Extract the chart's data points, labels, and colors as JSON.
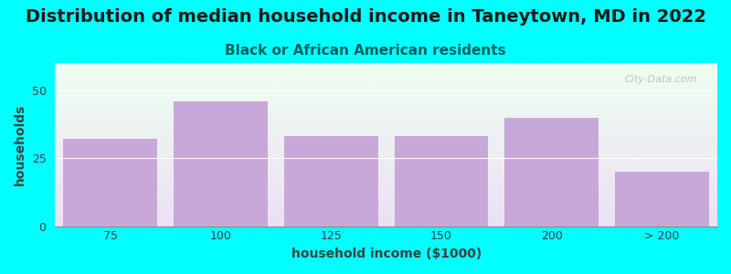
{
  "title": "Distribution of median household income in Taneytown, MD in 2022",
  "subtitle": "Black or African American residents",
  "categories": [
    "75",
    "100",
    "125",
    "150",
    "200",
    "> 200"
  ],
  "values": [
    32,
    46,
    33,
    33,
    40,
    20
  ],
  "bar_color": "#c8a8d8",
  "background_outer": "#00ffff",
  "background_inner_top": "#edfff0",
  "background_inner_bottom": "#ede0f5",
  "xlabel": "household income ($1000)",
  "ylabel": "households",
  "ylim": [
    0,
    60
  ],
  "yticks": [
    0,
    25,
    50
  ],
  "title_fontsize": 14,
  "subtitle_fontsize": 11,
  "axis_label_fontsize": 10,
  "tick_fontsize": 9,
  "title_color": "#1a1a1a",
  "subtitle_color": "#006060",
  "label_color": "#404040",
  "watermark": "City-Data.com"
}
